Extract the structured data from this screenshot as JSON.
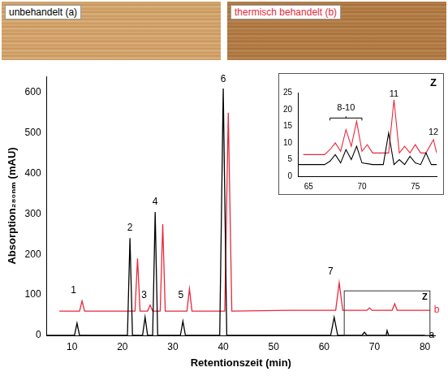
{
  "images": [
    {
      "label": "unbehandelt (a)",
      "color": "#000000"
    },
    {
      "label": "thermisch behandelt (b)",
      "color": "#e8283c"
    }
  ],
  "chart_data": [
    {
      "type": "line",
      "x_label": "Retentionszeit (min)",
      "y_label": "Absorption₂₈₀ₙₘ (mAU)",
      "xlim": [
        5,
        82
      ],
      "xticks": [
        10,
        20,
        30,
        40,
        50,
        60,
        70,
        80
      ],
      "ylim": [
        0,
        640
      ],
      "yticks": [
        0,
        100,
        200,
        300,
        400,
        500,
        600
      ],
      "grid": false,
      "series": [
        {
          "name": "a",
          "color": "#000000",
          "x": [
            5,
            10.5,
            11,
            11.5,
            21,
            21.5,
            22,
            24,
            24.5,
            25,
            26,
            26.5,
            27,
            31.5,
            32,
            32.5,
            39.3,
            40,
            40.7,
            52,
            61.3,
            62,
            62.7,
            67.5,
            68,
            68.5,
            72.3,
            72.5,
            72.8,
            80
          ],
          "values": [
            0,
            0,
            30,
            0,
            0,
            240,
            0,
            0,
            45,
            0,
            0,
            305,
            0,
            0,
            35,
            0,
            0,
            610,
            0,
            0,
            0,
            45,
            0,
            0,
            8,
            0,
            0,
            12,
            0,
            0
          ]
        },
        {
          "name": "b",
          "color": "#e8283c",
          "x": [
            7.5,
            11.5,
            12,
            12.5,
            22.5,
            23,
            23.5,
            25,
            25.5,
            26,
            27.5,
            28,
            28.5,
            32.8,
            33.3,
            33.8,
            40.3,
            41,
            41.7,
            53,
            62.3,
            63,
            63.7,
            68.5,
            69,
            69.5,
            73.5,
            74,
            74.5,
            81
          ],
          "values": [
            60,
            60,
            85,
            60,
            60,
            190,
            60,
            60,
            75,
            60,
            60,
            275,
            60,
            60,
            115,
            60,
            60,
            550,
            60,
            62,
            62,
            130,
            62,
            62,
            68,
            62,
            62,
            78,
            62,
            62
          ]
        }
      ],
      "annotations": [
        {
          "text": "1",
          "x": 10.3,
          "y": 100
        },
        {
          "text": "2",
          "x": 21.5,
          "y": 255
        },
        {
          "text": "3",
          "x": 24.3,
          "y": 88
        },
        {
          "text": "4",
          "x": 26.5,
          "y": 320
        },
        {
          "text": "5",
          "x": 31.6,
          "y": 88
        },
        {
          "text": "6",
          "x": 40,
          "y": 622
        },
        {
          "text": "7",
          "x": 61.3,
          "y": 148
        }
      ],
      "zoom_box": {
        "label": "Z",
        "xlim": [
          64,
          81
        ],
        "ylim": [
          0,
          110
        ]
      }
    },
    {
      "type": "line",
      "title": "Z",
      "xlim": [
        64,
        77
      ],
      "xticks": [
        65,
        70,
        75
      ],
      "ylim": [
        0,
        25
      ],
      "yticks": [
        0,
        5,
        10,
        15,
        20,
        25
      ],
      "grid": false,
      "series": [
        {
          "name": "a",
          "color": "#000000",
          "x": [
            64,
            66.5,
            67,
            67.5,
            68,
            68.5,
            69,
            69.5,
            70,
            71,
            72,
            72.5,
            73,
            73.5,
            74,
            74.5,
            75,
            75.5,
            76,
            76.5,
            77
          ],
          "values": [
            3.5,
            3.5,
            4.5,
            6.5,
            4,
            8,
            5,
            9,
            4,
            3.5,
            3.5,
            13,
            3.5,
            5,
            3.5,
            6,
            4,
            3.5,
            7,
            3.5,
            3.5
          ]
        },
        {
          "name": "b",
          "color": "#e8283c",
          "x": [
            64.5,
            66.5,
            67,
            67.5,
            68,
            68.5,
            69,
            69.5,
            70,
            70.5,
            71,
            72.5,
            73,
            73.5,
            74,
            74.5,
            75,
            75.5,
            76,
            76.7,
            77
          ],
          "values": [
            6.5,
            6.5,
            8,
            10,
            7.5,
            14,
            9,
            16.5,
            7.5,
            9.5,
            7,
            7,
            23,
            7,
            9,
            7,
            9.5,
            7,
            7,
            11,
            7
          ]
        }
      ],
      "annotations": [
        {
          "text": "8-10",
          "x": 68.5,
          "y": 19.5,
          "bracket": {
            "x": [
              67,
              70
            ],
            "y": 17.5
          }
        },
        {
          "text": "11",
          "x": 73,
          "y": 23.5
        },
        {
          "text": "12",
          "x": 76.7,
          "y": 12
        }
      ]
    }
  ]
}
